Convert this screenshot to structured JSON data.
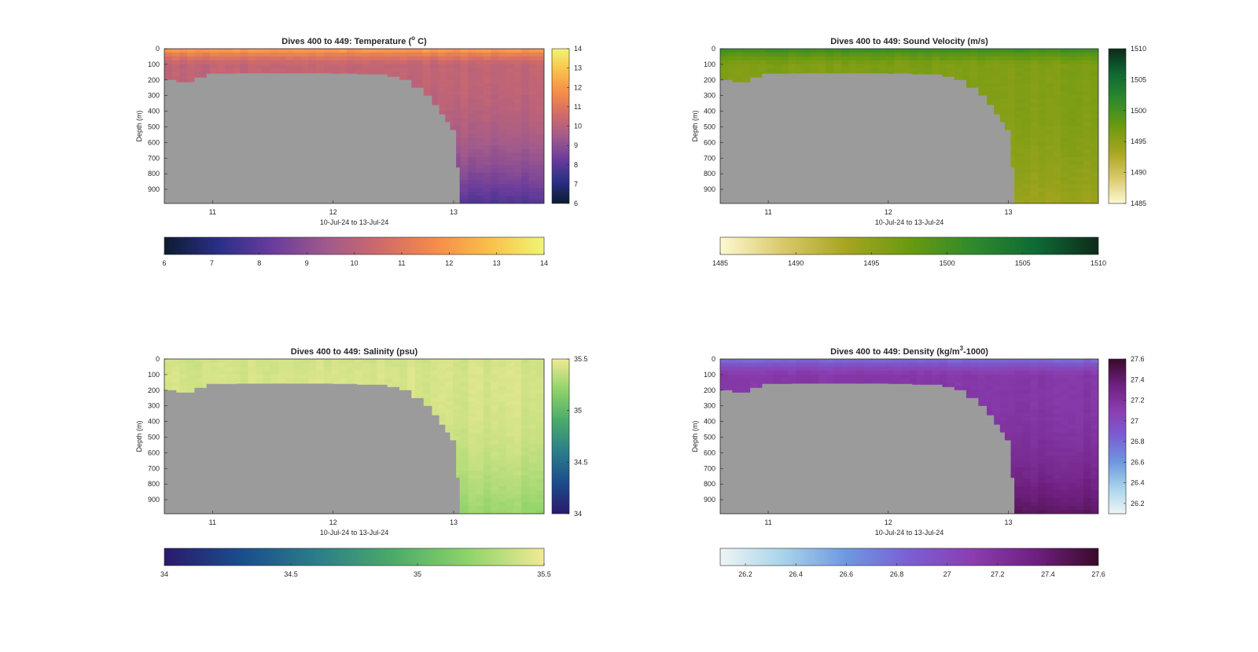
{
  "figure": {
    "date_range_label": "10-Jul-24 to 13-Jul-24",
    "seafloor_color": "#9b9b9b",
    "depth_axis_label": "Depth (m)",
    "depth_ticks": [
      0,
      100,
      200,
      300,
      400,
      500,
      600,
      700,
      800,
      900
    ],
    "x_ticks": [
      11,
      12,
      13
    ]
  },
  "chart_data": [
    {
      "type": "heatmap",
      "title": "Dives 400 to 449: Temperature (",
      "title_sup": "o",
      "title_end": " C)",
      "xlabel": "10-Jul-24 to 13-Jul-24",
      "ylabel": "Depth (m)",
      "x_unit": "day of July 2024",
      "xlim": [
        10.6,
        13.75
      ],
      "ylim": [
        0,
        990
      ],
      "y_reversed": true,
      "colorbar_ticks": [
        "6",
        "7",
        "8",
        "9",
        "10",
        "11",
        "12",
        "13",
        "14"
      ],
      "clim": [
        6,
        14
      ],
      "colormap": [
        "#0e1b30",
        "#2a2f86",
        "#6a3c9c",
        "#a05a8c",
        "#d06a6a",
        "#f58c4a",
        "#f9c04a",
        "#f0f574"
      ],
      "surface_value": 12.6,
      "deep_value": 10.2,
      "bottom_value": 7.8,
      "bathymetry_depth_m": [
        [
          10.6,
          200
        ],
        [
          10.7,
          215
        ],
        [
          10.85,
          185
        ],
        [
          10.95,
          160
        ],
        [
          11.2,
          158
        ],
        [
          12.0,
          160
        ],
        [
          12.2,
          165
        ],
        [
          12.45,
          180
        ],
        [
          12.55,
          200
        ],
        [
          12.65,
          250
        ],
        [
          12.75,
          300
        ],
        [
          12.82,
          360
        ],
        [
          12.88,
          420
        ],
        [
          12.93,
          470
        ],
        [
          12.97,
          520
        ],
        [
          13.02,
          760
        ],
        [
          13.05,
          990
        ]
      ]
    },
    {
      "type": "heatmap",
      "title": "Dives 400 to 449: Sound Velocity (m/s)",
      "xlabel": "10-Jul-24 to 13-Jul-24",
      "ylabel": "Depth (m)",
      "x_unit": "day of July 2024",
      "xlim": [
        10.6,
        13.75
      ],
      "ylim": [
        0,
        990
      ],
      "y_reversed": true,
      "colorbar_ticks": [
        "1485",
        "1490",
        "1495",
        "1500",
        "1505",
        "1510"
      ],
      "clim": [
        1485,
        1510
      ],
      "colormap": [
        "#fdf9d3",
        "#d9c86a",
        "#a6a51f",
        "#6a9a10",
        "#2f8a2c",
        "#0f6a35",
        "#0e2a1a"
      ],
      "surface_value": 1502,
      "deep_value": 1496,
      "bottom_value": 1494,
      "bathymetry_depth_m": [
        [
          10.6,
          200
        ],
        [
          10.7,
          215
        ],
        [
          10.85,
          185
        ],
        [
          10.95,
          160
        ],
        [
          11.2,
          158
        ],
        [
          12.0,
          160
        ],
        [
          12.2,
          165
        ],
        [
          12.45,
          180
        ],
        [
          12.55,
          200
        ],
        [
          12.65,
          250
        ],
        [
          12.75,
          300
        ],
        [
          12.82,
          360
        ],
        [
          12.88,
          420
        ],
        [
          12.93,
          470
        ],
        [
          12.97,
          520
        ],
        [
          13.02,
          760
        ],
        [
          13.05,
          990
        ]
      ]
    },
    {
      "type": "heatmap",
      "title": "Dives 400 to 449: Salinity (psu)",
      "xlabel": "10-Jul-24 to 13-Jul-24",
      "ylabel": "Depth (m)",
      "x_unit": "day of July 2024",
      "xlim": [
        10.6,
        13.75
      ],
      "ylim": [
        0,
        990
      ],
      "y_reversed": true,
      "colorbar_ticks": [
        "34",
        "34.5",
        "35",
        "35.5"
      ],
      "clim": [
        34,
        35.5
      ],
      "colormap": [
        "#2a1a6b",
        "#1b4c8c",
        "#2b7d8a",
        "#4aaa6a",
        "#8fd36a",
        "#f0ea94"
      ],
      "surface_value": 35.4,
      "deep_value": 35.42,
      "bottom_value": 35.22,
      "bathymetry_depth_m": [
        [
          10.6,
          200
        ],
        [
          10.7,
          215
        ],
        [
          10.85,
          185
        ],
        [
          10.95,
          160
        ],
        [
          11.2,
          158
        ],
        [
          12.0,
          160
        ],
        [
          12.2,
          165
        ],
        [
          12.45,
          180
        ],
        [
          12.55,
          200
        ],
        [
          12.65,
          250
        ],
        [
          12.75,
          300
        ],
        [
          12.82,
          360
        ],
        [
          12.88,
          420
        ],
        [
          12.93,
          470
        ],
        [
          12.97,
          520
        ],
        [
          13.02,
          760
        ],
        [
          13.05,
          990
        ]
      ]
    },
    {
      "type": "heatmap",
      "title": "Dives 400 to 449: Density (kg/m",
      "title_sup": "3",
      "title_end": "-1000)",
      "xlabel": "10-Jul-24 to 13-Jul-24",
      "ylabel": "Depth (m)",
      "x_unit": "day of July 2024",
      "xlim": [
        10.6,
        13.75
      ],
      "ylim": [
        0,
        990
      ],
      "y_reversed": true,
      "colorbar_ticks": [
        "26.2",
        "26.4",
        "26.6",
        "26.8",
        "27",
        "27.2",
        "27.4",
        "27.6"
      ],
      "clim": [
        26.1,
        27.6
      ],
      "colormap": [
        "#eef5f4",
        "#a9d3ea",
        "#6e98e0",
        "#7a5fd3",
        "#8a3eb0",
        "#6e2080",
        "#3a0a2a"
      ],
      "surface_value": 26.7,
      "deep_value": 27.15,
      "bottom_value": 27.45,
      "bathymetry_depth_m": [
        [
          10.6,
          200
        ],
        [
          10.7,
          215
        ],
        [
          10.85,
          185
        ],
        [
          10.95,
          160
        ],
        [
          11.2,
          158
        ],
        [
          12.0,
          160
        ],
        [
          12.2,
          165
        ],
        [
          12.45,
          180
        ],
        [
          12.55,
          200
        ],
        [
          12.65,
          250
        ],
        [
          12.75,
          300
        ],
        [
          12.82,
          360
        ],
        [
          12.88,
          420
        ],
        [
          12.93,
          470
        ],
        [
          12.97,
          520
        ],
        [
          13.02,
          760
        ],
        [
          13.05,
          990
        ]
      ]
    }
  ]
}
